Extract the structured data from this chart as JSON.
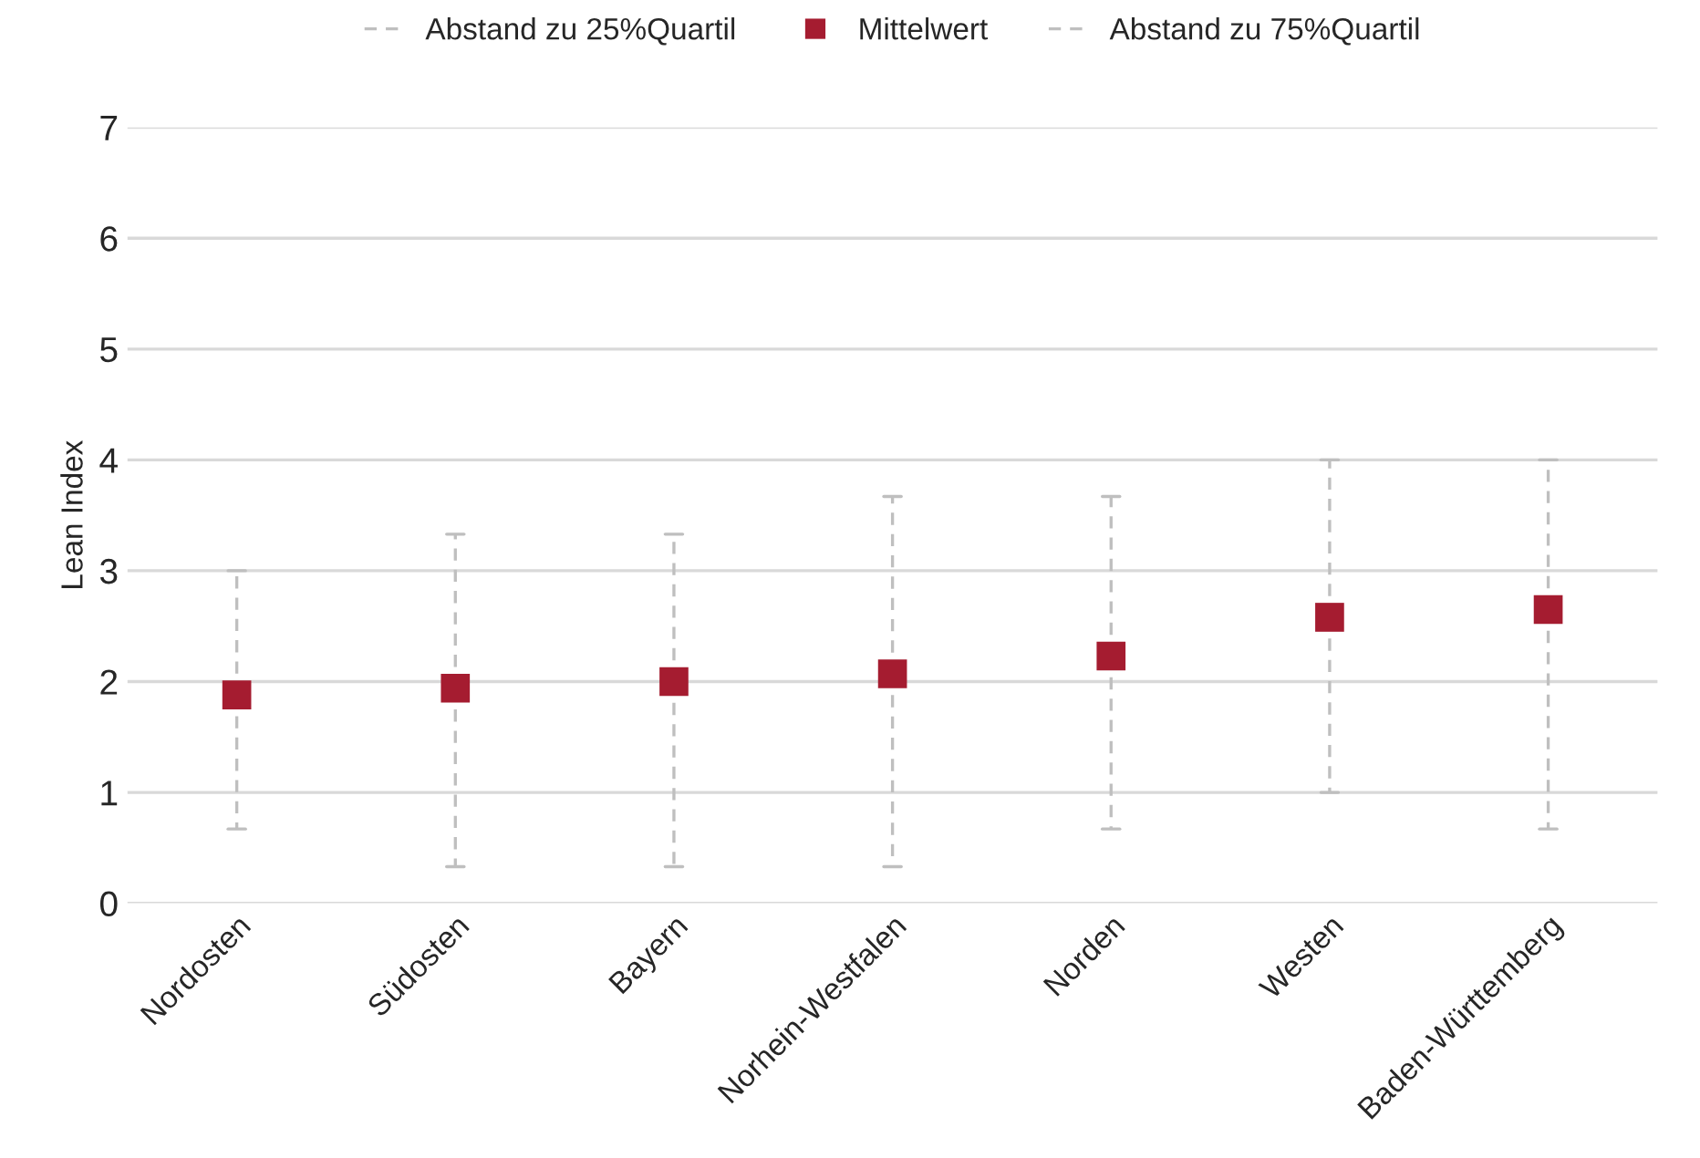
{
  "chart_data": {
    "type": "scatter",
    "ylabel": "Lean Index",
    "categories": [
      "Nordosten",
      "Südosten",
      "Bayern",
      "Norhein-Westfalen",
      "Norden",
      "Westen",
      "Baden-Württemberg"
    ],
    "series": [
      {
        "name": "Mittelwert",
        "color": "#a51c30",
        "values": [
          1.88,
          1.94,
          2.0,
          2.07,
          2.23,
          2.58,
          2.65
        ],
        "errors": [
          [
            0.67,
            3.0
          ],
          [
            0.33,
            3.33
          ],
          [
            0.33,
            3.33
          ],
          [
            0.33,
            3.67
          ],
          [
            0.67,
            3.67
          ],
          [
            1.0,
            4.0
          ],
          [
            0.67,
            4.0
          ]
        ]
      }
    ],
    "annotations": [
      "Abstand zu 25%Quartil",
      "Abstand zu 75%Quartil"
    ],
    "line_style": "dashed",
    "marker": "square",
    "ylim": [
      0,
      7
    ],
    "yticks": [
      0,
      1,
      2,
      3,
      4,
      5,
      6,
      7
    ],
    "grid": "y",
    "legend": "top"
  }
}
